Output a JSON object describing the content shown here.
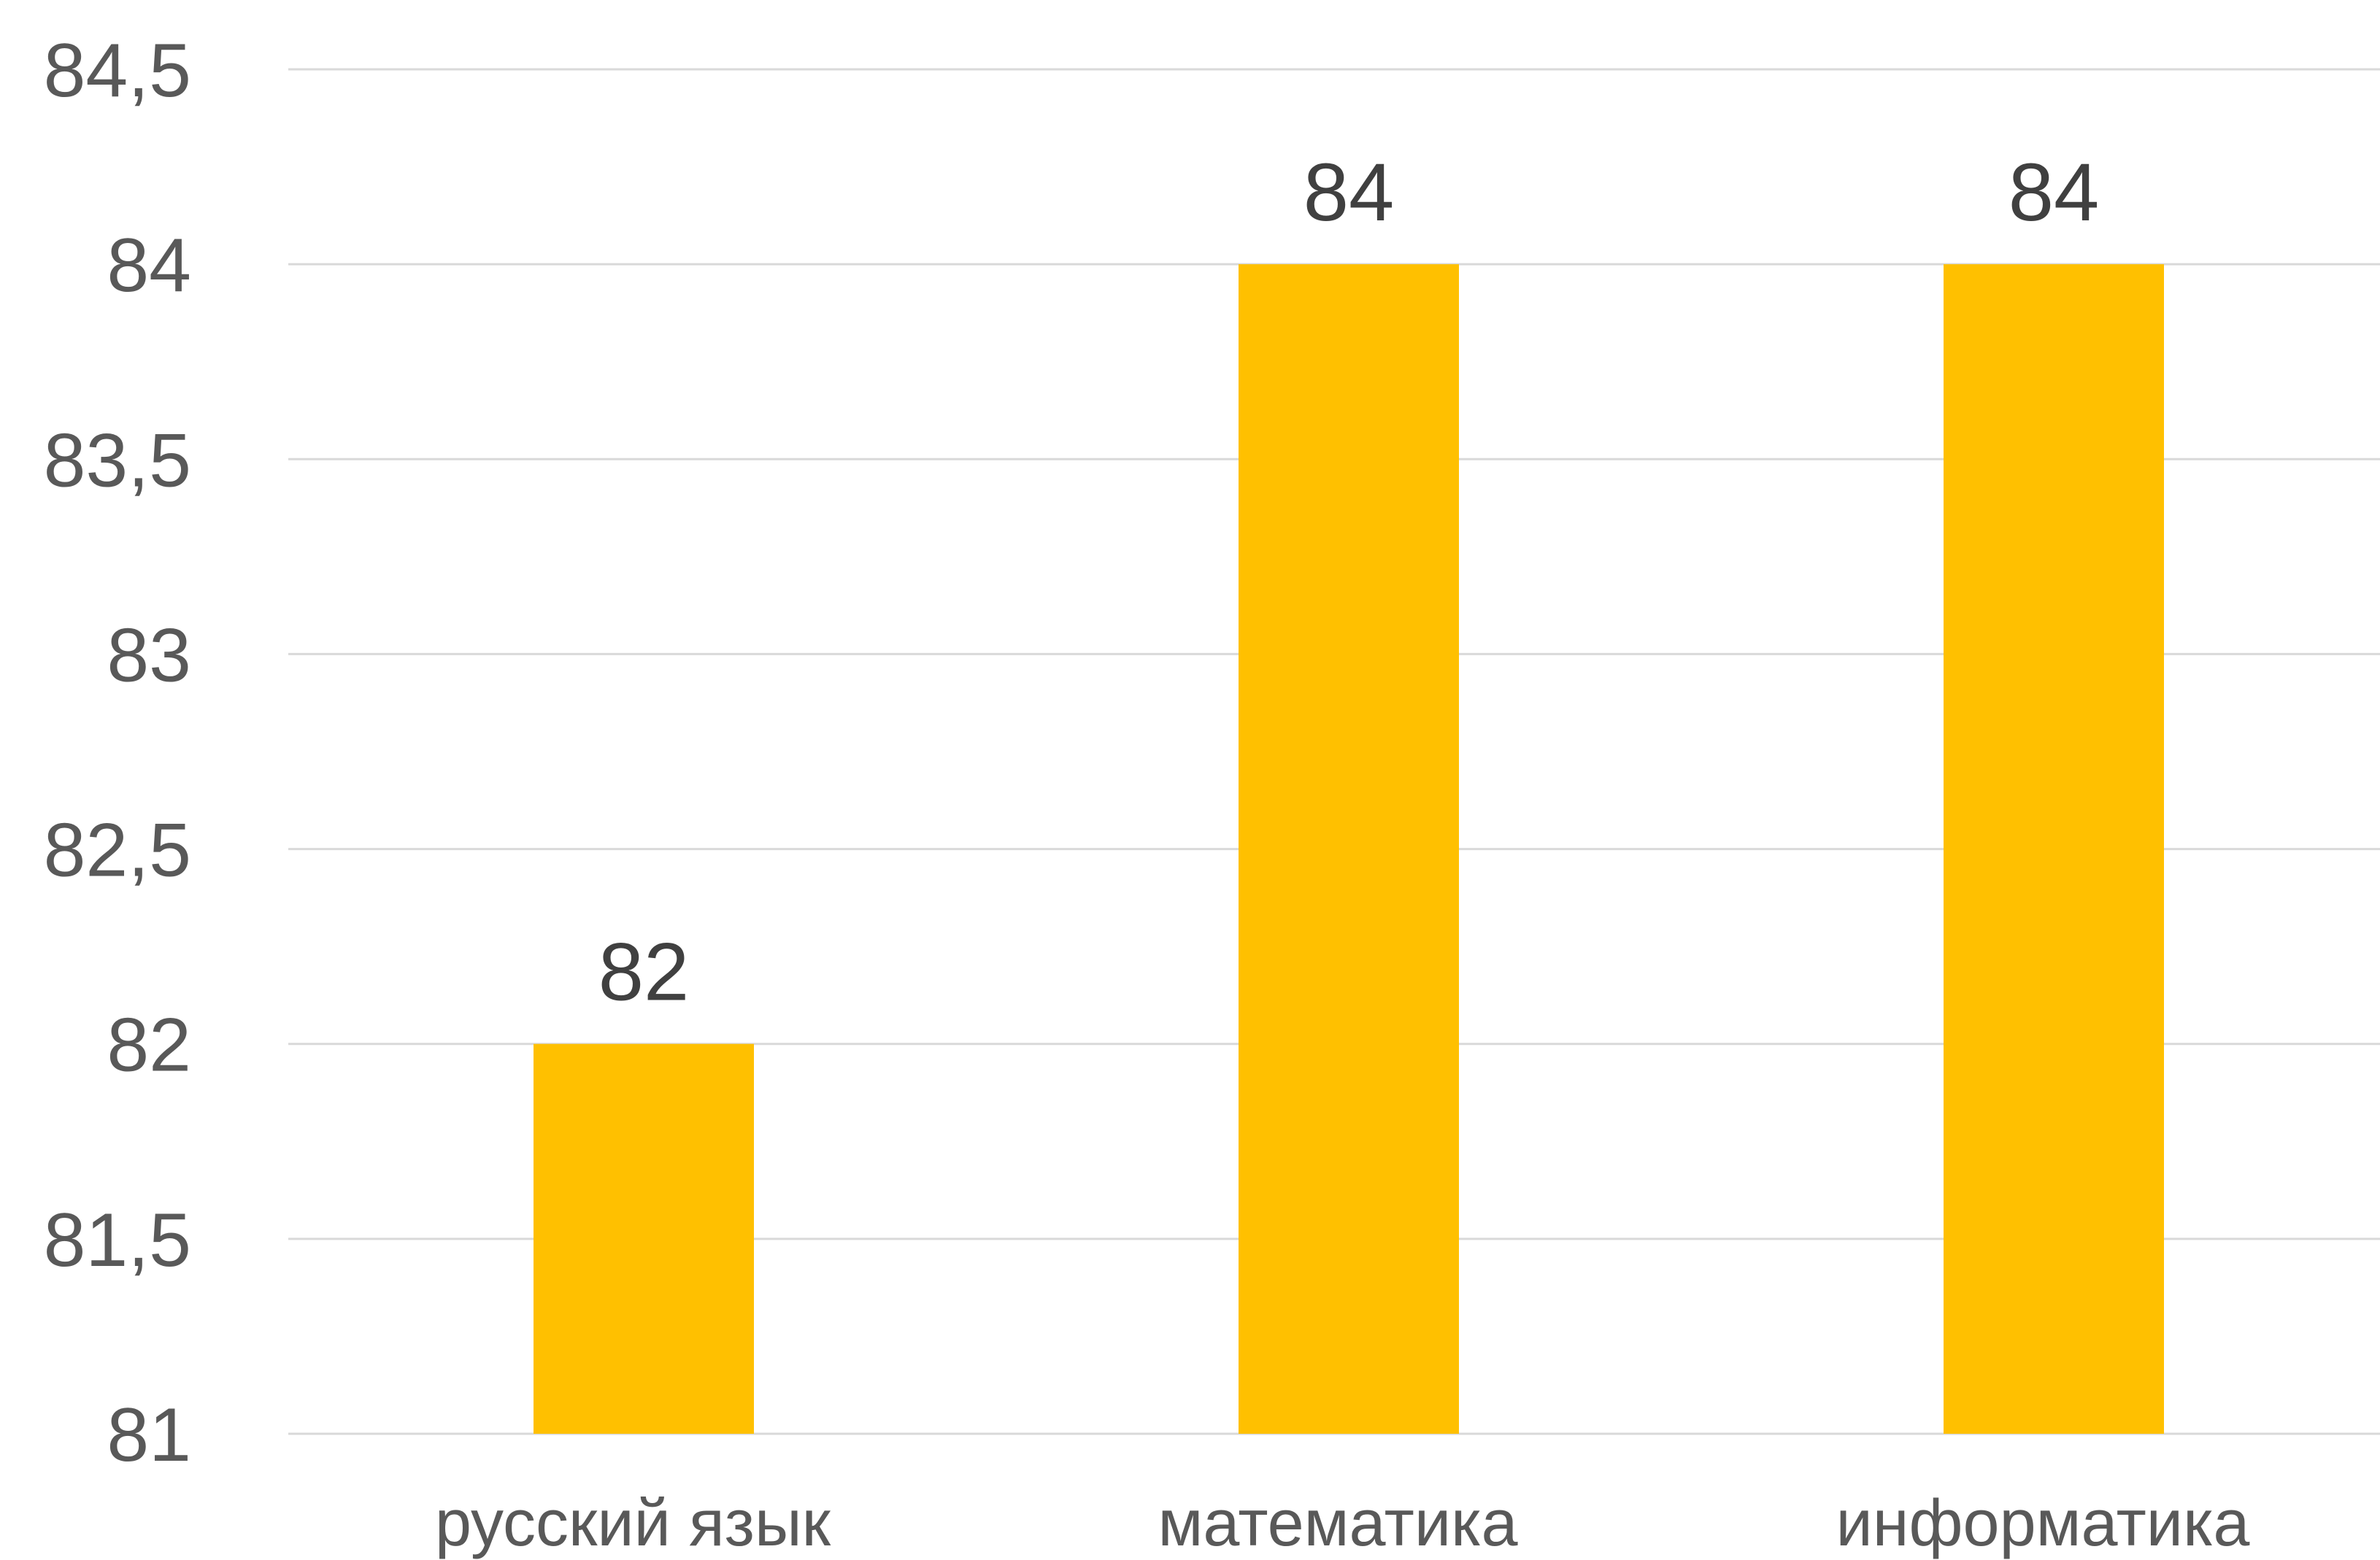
{
  "chart_data": {
    "type": "bar",
    "title": "",
    "xlabel": "",
    "ylabel": "",
    "categories": [
      "русский язык",
      "математика",
      "информатика"
    ],
    "values": [
      82,
      84,
      84
    ],
    "data_labels": [
      "82",
      "84",
      "84"
    ],
    "ylim": [
      81,
      84.5
    ],
    "ytick_values": [
      81,
      81.5,
      82,
      82.5,
      83,
      83.5,
      84,
      84.5
    ],
    "ytick_labels": [
      "81",
      "81,5",
      "82",
      "82,5",
      "83",
      "83,5",
      "84",
      "84,5"
    ],
    "grid": true,
    "legend": "none",
    "bar_color": "#FFC000",
    "grid_color": "#D9D9D9",
    "text_color": "#595959"
  }
}
